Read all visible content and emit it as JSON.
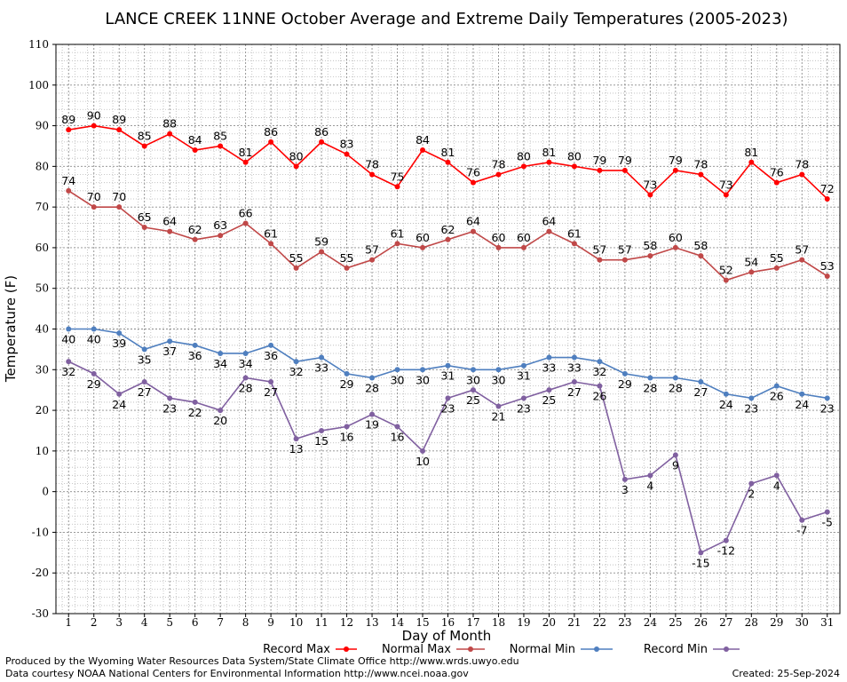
{
  "chart_data": {
    "type": "line",
    "title": "LANCE CREEK 11NNE October Average and Extreme Daily Temperatures (2005-2023)",
    "xlabel": "Day of Month",
    "ylabel": "Temperature (F)",
    "ylim": [
      -30,
      110
    ],
    "yticks": [
      -30,
      -20,
      -10,
      0,
      10,
      20,
      30,
      40,
      50,
      60,
      70,
      80,
      90,
      100,
      110
    ],
    "x": [
      1,
      2,
      3,
      4,
      5,
      6,
      7,
      8,
      9,
      10,
      11,
      12,
      13,
      14,
      15,
      16,
      17,
      18,
      19,
      20,
      21,
      22,
      23,
      24,
      25,
      26,
      27,
      28,
      29,
      30,
      31
    ],
    "grid": true,
    "legend_position": "bottom",
    "series": [
      {
        "name": "Record Max",
        "color": "#ff0000",
        "values": [
          89,
          90,
          89,
          85,
          88,
          84,
          85,
          81,
          86,
          80,
          86,
          83,
          78,
          75,
          84,
          81,
          76,
          78,
          80,
          81,
          80,
          79,
          79,
          73,
          79,
          78,
          73,
          81,
          76,
          78,
          72
        ]
      },
      {
        "name": "Normal Max",
        "color": "#c04848",
        "values": [
          74,
          70,
          70,
          65,
          64,
          62,
          63,
          66,
          61,
          55,
          59,
          55,
          57,
          61,
          60,
          62,
          64,
          60,
          60,
          64,
          61,
          57,
          57,
          58,
          60,
          58,
          52,
          54,
          55,
          57,
          53
        ]
      },
      {
        "name": "Normal Min",
        "color": "#4f7fbf",
        "values": [
          40,
          40,
          39,
          35,
          37,
          36,
          34,
          34,
          36,
          32,
          33,
          29,
          28,
          30,
          30,
          31,
          30,
          30,
          31,
          33,
          33,
          32,
          29,
          28,
          28,
          27,
          24,
          23,
          26,
          24,
          23
        ]
      },
      {
        "name": "Record Min",
        "color": "#8060a0",
        "values": [
          32,
          29,
          24,
          27,
          23,
          22,
          20,
          28,
          27,
          13,
          15,
          16,
          19,
          16,
          10,
          23,
          25,
          21,
          23,
          25,
          27,
          26,
          3,
          4,
          9,
          -15,
          -12,
          2,
          4,
          -7,
          -5
        ]
      }
    ]
  },
  "footer": {
    "line1": "Produced by the Wyoming Water Resources Data System/State Climate Office http://www.wrds.uwyo.edu",
    "line2": "Data courtesy NOAA National Centers for Environmental Information http://www.ncei.noaa.gov",
    "created": "Created:  25-Sep-2024"
  }
}
